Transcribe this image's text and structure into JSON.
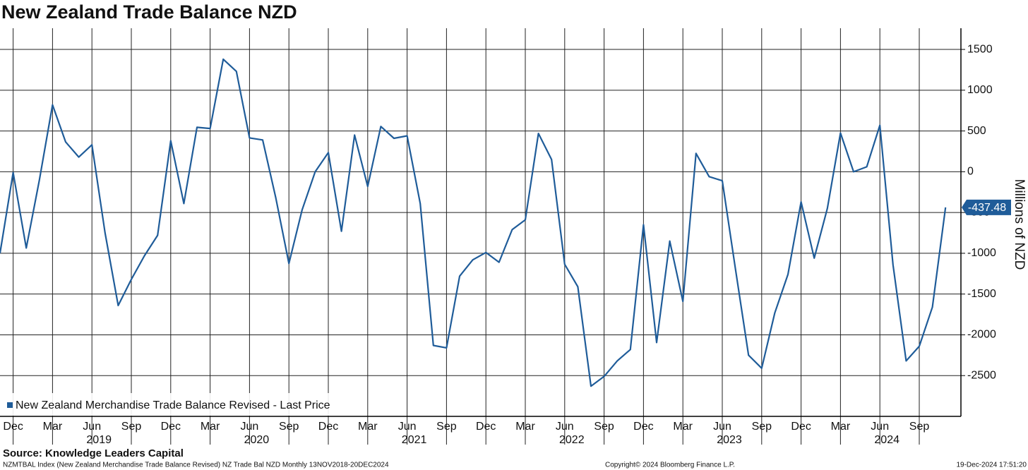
{
  "chart_data": {
    "type": "line",
    "title": "New Zealand Trade Balance NZD",
    "y_axis_label": "Millions of NZD",
    "source": "Source: Knowledge Leaders Capital",
    "footer_left": "NZMTBAL Index (New Zealand Merchandise Trade Balance Revised) NZ Trade Bal NZD  Monthly 13NOV2018-20DEC2024",
    "footer_center": "Copyright© 2024 Bloomberg Finance L.P.",
    "footer_right": "19-Dec-2024 17:51:20",
    "last_price_label": "-437.48",
    "x": [
      "2018-11",
      "2018-12",
      "2019-01",
      "2019-02",
      "2019-03",
      "2019-04",
      "2019-05",
      "2019-06",
      "2019-07",
      "2019-08",
      "2019-09",
      "2019-10",
      "2019-11",
      "2019-12",
      "2020-01",
      "2020-02",
      "2020-03",
      "2020-04",
      "2020-05",
      "2020-06",
      "2020-07",
      "2020-08",
      "2020-09",
      "2020-10",
      "2020-11",
      "2020-12",
      "2021-01",
      "2021-02",
      "2021-03",
      "2021-04",
      "2021-05",
      "2021-06",
      "2021-07",
      "2021-08",
      "2021-09",
      "2021-10",
      "2021-11",
      "2021-12",
      "2022-01",
      "2022-02",
      "2022-03",
      "2022-04",
      "2022-05",
      "2022-06",
      "2022-07",
      "2022-08",
      "2022-09",
      "2022-10",
      "2022-11",
      "2022-12",
      "2023-01",
      "2023-02",
      "2023-03",
      "2023-04",
      "2023-05",
      "2023-06",
      "2023-07",
      "2023-08",
      "2023-09",
      "2023-10",
      "2023-11",
      "2023-12",
      "2024-01",
      "2024-02",
      "2024-03",
      "2024-04",
      "2024-05",
      "2024-06",
      "2024-07",
      "2024-08",
      "2024-09",
      "2024-10",
      "2024-11"
    ],
    "series": [
      {
        "name": "New Zealand Merchandise Trade Balance Revised - Last Price",
        "color": "#1f5c99",
        "values": [
          -1000,
          -10,
          -935,
          -100,
          820,
          365,
          180,
          330,
          -750,
          -1640,
          -1320,
          -1030,
          -780,
          380,
          -390,
          545,
          530,
          1380,
          1230,
          415,
          390,
          -320,
          -1125,
          -470,
          0,
          235,
          -730,
          450,
          -180,
          555,
          410,
          440,
          -390,
          -2130,
          -2160,
          -1280,
          -1080,
          -990,
          -1110,
          -710,
          -590,
          470,
          150,
          -1135,
          -1410,
          -2630,
          -2510,
          -2320,
          -2180,
          -650,
          -2095,
          -850,
          -1590,
          225,
          -60,
          -110,
          -1190,
          -2250,
          -2410,
          -1730,
          -1260,
          -370,
          -1060,
          -450,
          475,
          0,
          60,
          570,
          -1140,
          -2320,
          -2140,
          -1660,
          -437.48
        ]
      }
    ],
    "ylim": [
      -3000,
      1760
    ],
    "yticks": [
      1500,
      1000,
      500,
      0,
      -500,
      -1000,
      -1500,
      -2000,
      -2500
    ],
    "xticks": [
      {
        "value": "2018-12",
        "label": "Dec"
      },
      {
        "value": "2019-03",
        "label": "Mar"
      },
      {
        "value": "2019-06",
        "label": "Jun"
      },
      {
        "value": "2019-09",
        "label": "Sep"
      },
      {
        "value": "2019-12",
        "label": "Dec"
      },
      {
        "value": "2020-03",
        "label": "Mar"
      },
      {
        "value": "2020-06",
        "label": "Jun"
      },
      {
        "value": "2020-09",
        "label": "Sep"
      },
      {
        "value": "2020-12",
        "label": "Dec"
      },
      {
        "value": "2021-03",
        "label": "Mar"
      },
      {
        "value": "2021-06",
        "label": "Jun"
      },
      {
        "value": "2021-09",
        "label": "Sep"
      },
      {
        "value": "2021-12",
        "label": "Dec"
      },
      {
        "value": "2022-03",
        "label": "Mar"
      },
      {
        "value": "2022-06",
        "label": "Jun"
      },
      {
        "value": "2022-09",
        "label": "Sep"
      },
      {
        "value": "2022-12",
        "label": "Dec"
      },
      {
        "value": "2023-03",
        "label": "Mar"
      },
      {
        "value": "2023-06",
        "label": "Jun"
      },
      {
        "value": "2023-09",
        "label": "Sep"
      },
      {
        "value": "2023-12",
        "label": "Dec"
      },
      {
        "value": "2024-03",
        "label": "Mar"
      },
      {
        "value": "2024-06",
        "label": "Jun"
      },
      {
        "value": "2024-09",
        "label": "Sep"
      }
    ],
    "year_labels": [
      {
        "value": "2019-06",
        "label": "2019"
      },
      {
        "value": "2020-06",
        "label": "2020"
      },
      {
        "value": "2021-06",
        "label": "2021"
      },
      {
        "value": "2022-06",
        "label": "2022"
      },
      {
        "value": "2023-06",
        "label": "2023"
      },
      {
        "value": "2024-06",
        "label": "2024"
      }
    ],
    "grid": true
  }
}
